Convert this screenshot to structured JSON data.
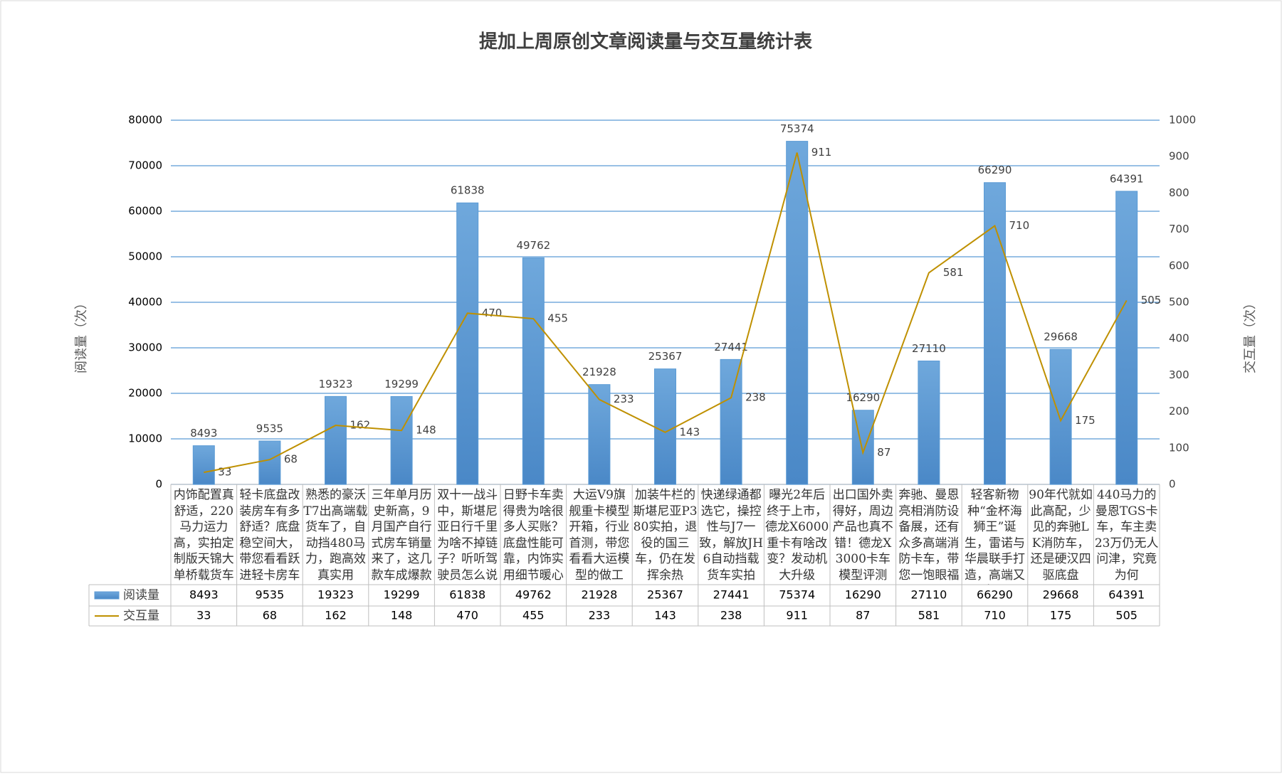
{
  "chart_data": {
    "type": "bar-line",
    "title": "提加上周原创文章阅读量与交互量统计表",
    "y_label": "阅读量（次）",
    "y2_label": "交互量（次）",
    "categories": [
      "内饰配置真舒适，220马力运力高，实拍定制版天锦大单桥载货车",
      "轻卡底盘改装房车有多舒适？底盘稳空间大，带您看看跃进轻卡房车",
      "熟悉的豪沃T7出高端载货车了，自动挡480马力，跑高效真实用",
      "三年单月历史新高，9月国产自行式房车销量来了，这几款车成爆款",
      "双十一战斗中，斯堪尼亚日行千里为啥不掉链子？听听驾驶员怎么说",
      "日野卡车卖得贵为啥很多人买账？底盘性能可靠，内饰实用细节暖心",
      "大运V9旗舰重卡模型开箱，行业首测，带您看看大运模型的做工",
      "加装牛栏的斯堪尼亚P380实拍，退役的国三车，仍在发挥余热",
      "快递绿通都选它，操控性与J7一致，解放JH6自动挡载货车实拍",
      "曝光2年后终于上市，德龙X6000重卡有啥改变？发动机大升级",
      "出口国外卖得好，周边产品也真不错！德龙X3000卡车模型评测",
      "奔驰、曼恩亮相消防设备展，还有众多高端消防卡车，带您一饱眼福",
      "轻客新物种“金杯海狮王”诞生，雷诺与华晨联手打造，高端又实用",
      "90年代就如此高配，少见的奔驰LK消防车，还是硬汉四驱底盘",
      "440马力的曼恩TGS卡车，车主卖23万仍无人问津，究竟为何"
    ],
    "series": [
      {
        "name": "阅读量",
        "type": "bar",
        "color": "#5b9bd5",
        "values": [
          8493,
          9535,
          19323,
          19299,
          61838,
          49762,
          21928,
          25367,
          27441,
          75374,
          16290,
          27110,
          66290,
          29668,
          64391
        ]
      },
      {
        "name": "交互量",
        "type": "line",
        "axis": "y2",
        "color": "#bf9000",
        "values": [
          33,
          68,
          162,
          148,
          470,
          455,
          233,
          143,
          238,
          911,
          87,
          581,
          710,
          175,
          505
        ]
      }
    ],
    "ylim": [
      0,
      80000
    ],
    "yticks": [
      0,
      10000,
      20000,
      30000,
      40000,
      50000,
      60000,
      70000,
      80000
    ],
    "y2lim": [
      0,
      1000
    ],
    "y2ticks": [
      0,
      100,
      200,
      300,
      400,
      500,
      600,
      700,
      800,
      900,
      1000
    ],
    "grid": true
  }
}
